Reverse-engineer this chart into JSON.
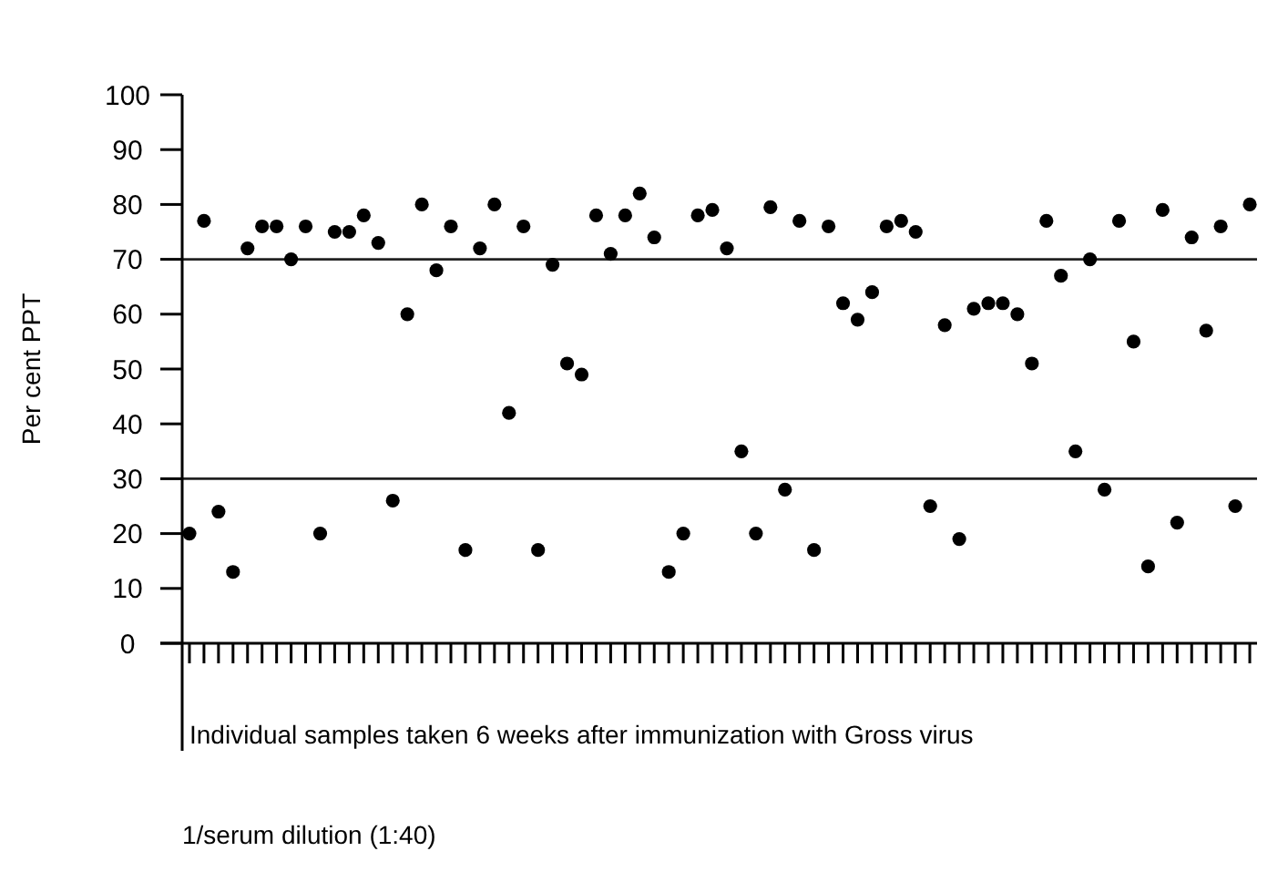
{
  "chart_data": {
    "type": "scatter",
    "ylabel": "Per cent PPT",
    "xlabel": "Individual samples taken 6 weeks after immunization with Gross virus",
    "annotations": [
      "1/serum dilution (1:40)"
    ],
    "categories": [
      null,
      null,
      null,
      null,
      null,
      null,
      null,
      null,
      null,
      null,
      null,
      null,
      null,
      null,
      null,
      null,
      null,
      null,
      null,
      null,
      null,
      null,
      null,
      null,
      null,
      null,
      null,
      null,
      null,
      null,
      null,
      null,
      null,
      null,
      null,
      null,
      null,
      null,
      null,
      null,
      null,
      null,
      null,
      null,
      null,
      null,
      null,
      null,
      null,
      null,
      null,
      null,
      null,
      null,
      null,
      null,
      null,
      null,
      null,
      null,
      null,
      null,
      null,
      null,
      null,
      null,
      null,
      null,
      null,
      null,
      null,
      null,
      null,
      null
    ],
    "values": [
      20,
      77,
      24,
      13,
      72,
      76,
      76,
      70,
      76,
      20,
      75,
      75,
      78,
      73,
      26,
      60,
      80,
      68,
      76,
      17,
      72,
      80,
      42,
      76,
      17,
      69,
      51,
      49,
      78,
      71,
      78,
      82,
      74,
      13,
      20,
      78,
      79,
      72,
      35,
      20,
      79.5,
      28,
      77,
      17,
      76,
      62,
      59,
      64,
      76,
      77,
      75,
      25,
      58,
      19,
      61,
      62,
      62,
      60,
      51,
      77,
      67,
      35,
      70,
      28,
      77,
      55,
      14,
      79,
      22,
      74,
      57,
      76,
      25,
      80
    ],
    "color": "#000000",
    "marker": "circle",
    "ylim": [
      0,
      100
    ],
    "yticks": [
      0,
      10,
      20,
      30,
      40,
      50,
      60,
      70,
      80,
      90,
      100
    ],
    "ref_lines": [
      {
        "axis": "y",
        "value": 70
      },
      {
        "axis": "y",
        "value": 30
      }
    ],
    "grid": false
  }
}
